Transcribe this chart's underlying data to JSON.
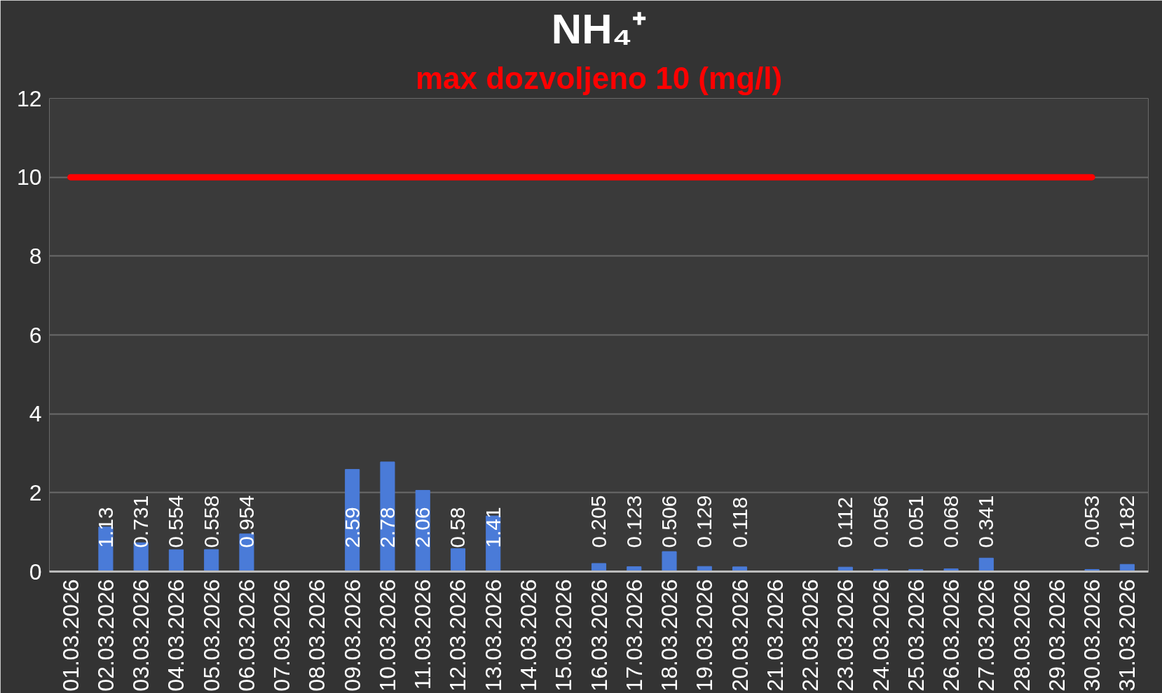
{
  "chart_data": {
    "type": "bar",
    "title": "NH₄⁺",
    "subtitle": "max dozvoljeno 10 (mg/l)",
    "categories": [
      "01.03.2026",
      "02.03.2026",
      "03.03.2026",
      "04.03.2026",
      "05.03.2026",
      "06.03.2026",
      "07.03.2026",
      "08.03.2026",
      "09.03.2026",
      "10.03.2026",
      "11.03.2026",
      "12.03.2026",
      "13.03.2026",
      "14.03.2026",
      "15.03.2026",
      "16.03.2026",
      "17.03.2026",
      "18.03.2026",
      "19.03.2026",
      "20.03.2026",
      "21.03.2026",
      "22.03.2026",
      "23.03.2026",
      "24.03.2026",
      "25.03.2026",
      "26.03.2026",
      "27.03.2026",
      "28.03.2026",
      "29.03.2026",
      "30.03.2026",
      "31.03.2026"
    ],
    "series": [
      {
        "color": "#4a7bd8",
        "values": [
          null,
          1.13,
          0.731,
          0.554,
          0.558,
          0.954,
          null,
          null,
          2.59,
          2.78,
          2.06,
          0.58,
          1.41,
          null,
          null,
          0.205,
          0.123,
          0.506,
          0.129,
          0.118,
          null,
          null,
          0.112,
          0.056,
          0.051,
          0.068,
          0.341,
          null,
          null,
          0.053,
          0.182
        ],
        "value_labels": [
          null,
          "1.13",
          "0.731",
          "0.554",
          "0.558",
          "0.954",
          null,
          null,
          "2.59",
          "2.78",
          "2.06",
          "0.58",
          "1.41",
          null,
          null,
          "0.205",
          "0.123",
          "0.506",
          "0.129",
          "0.118",
          null,
          null,
          "0.112",
          "0.056",
          "0.051",
          "0.068",
          "0.341",
          null,
          null,
          "0.053",
          "0.182"
        ]
      },
      {
        "type": "line",
        "color": "#ff0000",
        "values": [
          10,
          10,
          10,
          10,
          10,
          10,
          10,
          10,
          10,
          10,
          10,
          10,
          10,
          10,
          10,
          10,
          10,
          10,
          10,
          10,
          10,
          10,
          10,
          10,
          10,
          10,
          10,
          10,
          10,
          10,
          null
        ]
      }
    ],
    "ylim": [
      0,
      12
    ],
    "yticks": [
      0,
      2,
      4,
      6,
      8,
      10,
      12
    ],
    "grid": "y"
  }
}
